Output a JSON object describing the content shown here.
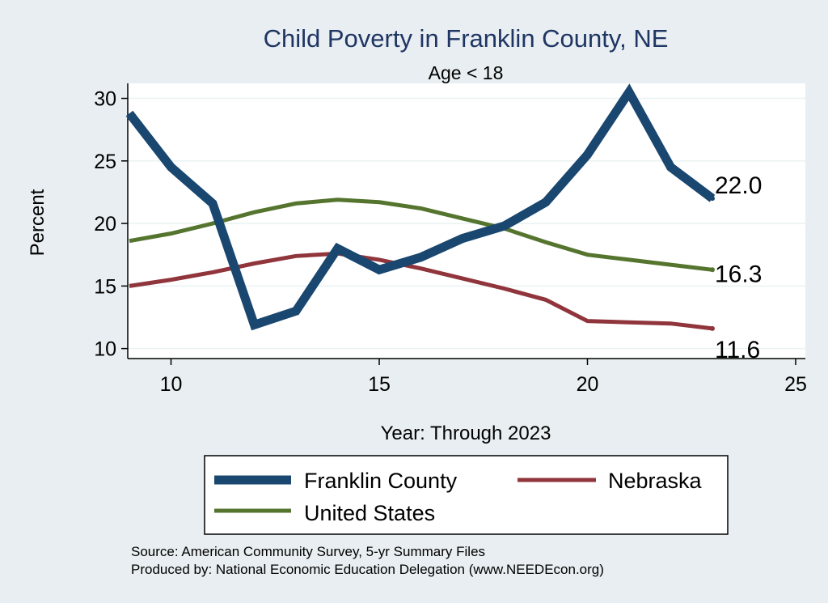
{
  "chart_data": {
    "type": "line",
    "title": "Child Poverty in Franklin County, NE",
    "subtitle": "Age < 18",
    "xlabel": "Year: Through 2023",
    "ylabel": "Percent",
    "xlim": [
      9,
      25
    ],
    "ylim": [
      9.2,
      31.2
    ],
    "xticks": [
      10,
      15,
      20,
      25
    ],
    "yticks": [
      10,
      15,
      20,
      25,
      30
    ],
    "grid": "horizontal",
    "legend_position": "bottom",
    "series": [
      {
        "name": "Franklin County",
        "color": "#1a476f",
        "x": [
          9,
          10,
          11,
          12,
          13,
          14,
          15,
          16,
          17,
          18,
          19,
          20,
          21,
          22,
          23
        ],
        "values": [
          28.8,
          24.5,
          21.6,
          11.9,
          13.0,
          18.0,
          16.3,
          17.3,
          18.8,
          19.8,
          21.7,
          25.5,
          30.5,
          24.5,
          22.0
        ],
        "end_label": "22.0"
      },
      {
        "name": "Nebraska",
        "color": "#90353b",
        "x": [
          9,
          10,
          11,
          12,
          13,
          14,
          15,
          16,
          17,
          18,
          19,
          20,
          21,
          22,
          23
        ],
        "values": [
          15.0,
          15.5,
          16.1,
          16.8,
          17.4,
          17.6,
          17.1,
          16.4,
          15.6,
          14.8,
          13.9,
          12.2,
          12.1,
          12.0,
          11.6
        ],
        "end_label": "11.6"
      },
      {
        "name": "United States",
        "color": "#55752f",
        "x": [
          9,
          10,
          11,
          12,
          13,
          14,
          15,
          16,
          17,
          18,
          19,
          20,
          21,
          22,
          23
        ],
        "values": [
          18.6,
          19.2,
          20.0,
          20.9,
          21.6,
          21.9,
          21.7,
          21.2,
          20.4,
          19.6,
          18.5,
          17.5,
          17.1,
          16.7,
          16.3
        ],
        "end_label": "16.3"
      }
    ],
    "notes": [
      "Source: American Community Survey, 5-yr Summary Files",
      "Produced by: National Economic Education Delegation (www.NEEDEcon.org)"
    ]
  }
}
